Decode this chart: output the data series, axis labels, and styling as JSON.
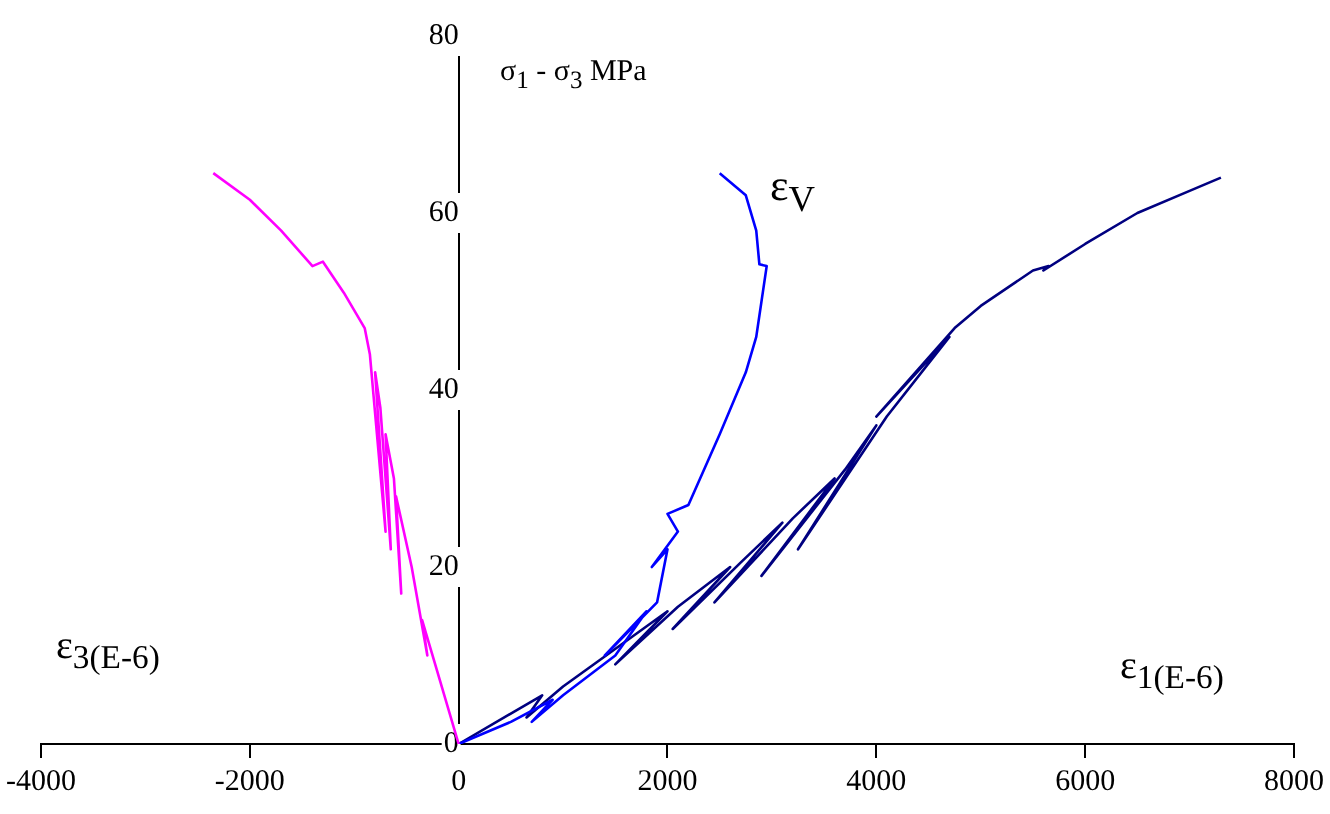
{
  "chart_data": {
    "type": "line",
    "annotations": [
      "ε$_{3(E-6)}$",
      "ε$_{1(E-6)}$"
    ],
    "ylabel": "σ$_{1}$ - σ$_{3}$  MPa",
    "xlim": [
      -4000,
      8000
    ],
    "xticks": [
      -4000,
      -2000,
      0,
      2000,
      4000,
      6000,
      8000
    ],
    "ylim": [
      0,
      80
    ],
    "yticks": [
      0,
      20,
      40,
      60,
      80
    ],
    "grid": false,
    "legend": false,
    "marker": "none",
    "line_style": "solid",
    "series": [
      {
        "color": "#ff00ff",
        "x": [
          0,
          -200,
          -350,
          -300,
          -450,
          -600,
          -550,
          -620,
          -700,
          -650,
          -750,
          -800,
          -700,
          -850,
          -900,
          -1100,
          -1300,
          -1400,
          -1700,
          -2000,
          -2350
        ],
        "values": [
          0,
          8,
          14,
          10,
          20,
          28,
          17,
          30,
          35,
          22,
          38,
          42,
          24,
          44,
          47,
          51,
          54.5,
          54,
          58,
          61.5,
          64.5
        ]
      },
      {
        "name": "ε$_{V}$",
        "color": "#0000ff",
        "x": [
          0,
          500,
          900,
          700,
          1000,
          1500,
          1800,
          1400,
          1900,
          2000,
          1850,
          2100,
          2000,
          2200,
          2500,
          2750,
          2850,
          2950,
          2880,
          2850,
          2750,
          2500
        ],
        "values": [
          0,
          2.5,
          5,
          2.5,
          5.5,
          10,
          15,
          10,
          16,
          22,
          20,
          24,
          26,
          27,
          35,
          42,
          46,
          54,
          54.2,
          58,
          62,
          64.5
        ]
      },
      {
        "color": "#000080",
        "x": [
          0,
          800,
          650,
          1000,
          2000,
          1500,
          2100,
          2600,
          2050,
          2700,
          3100,
          2450,
          3200,
          3600,
          2900,
          3700,
          4000,
          3250,
          4100,
          4700,
          4000,
          4750,
          5000,
          5500,
          5650,
          5600,
          6000,
          6500,
          7000,
          7300
        ],
        "values": [
          0,
          5.5,
          3,
          6.5,
          15,
          9,
          15.5,
          20,
          13,
          20.5,
          25,
          16,
          25.5,
          30,
          19,
          31,
          36,
          22,
          37,
          46,
          37,
          47,
          49.5,
          53.5,
          54,
          53.5,
          56.5,
          60,
          62.5,
          64
        ]
      }
    ]
  }
}
